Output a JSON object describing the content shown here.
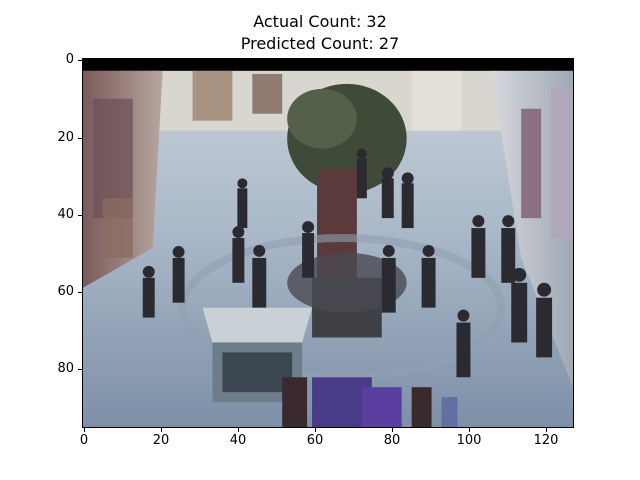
{
  "figure": {
    "title_line1": "Actual Count: 32",
    "title_line2": "Predicted Count: 27"
  },
  "image_axes": {
    "x_ticks": [
      "0",
      "20",
      "40",
      "60",
      "80",
      "100",
      "120"
    ],
    "x_tick_values": [
      0,
      20,
      40,
      60,
      80,
      100,
      120
    ],
    "y_ticks": [
      "0",
      "20",
      "40",
      "60",
      "80"
    ],
    "y_tick_values": [
      0,
      20,
      40,
      60,
      80
    ],
    "x_range": [
      -0.5,
      127.5
    ],
    "y_range": [
      -0.5,
      95.5
    ]
  }
}
